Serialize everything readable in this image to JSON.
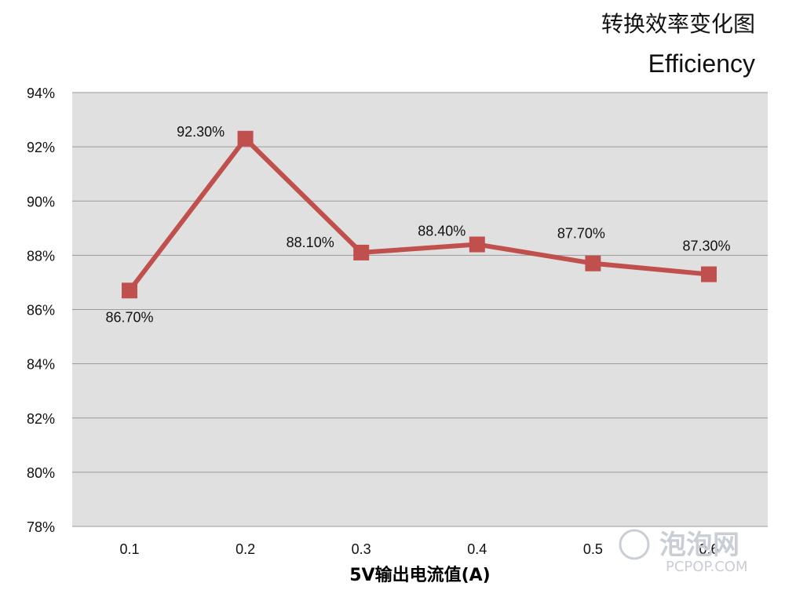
{
  "chart_data": {
    "type": "line",
    "title": "转换效率变化图",
    "subtitle": "Efficiency",
    "xlabel": "5V输出电流值(A)",
    "ylabel": "",
    "categories": [
      "0.1",
      "0.2",
      "0.3",
      "0.4",
      "0.5",
      "0.6"
    ],
    "series": [
      {
        "values": [
          86.7,
          92.3,
          88.1,
          88.4,
          87.7,
          87.3
        ],
        "data_labels": [
          "86.70%",
          "92.30%",
          "88.10%",
          "88.40%",
          "87.70%",
          "87.30%"
        ],
        "color": "#c0504d"
      }
    ],
    "ylim": [
      78,
      94
    ],
    "ytick_values": [
      78,
      80,
      82,
      84,
      86,
      88,
      90,
      92,
      94
    ],
    "ytick_labels": [
      "78%",
      "80%",
      "82%",
      "84%",
      "86%",
      "88%",
      "90%",
      "92%",
      "94%"
    ],
    "grid": true,
    "plot_background": "#e0e0e0",
    "gridline_color": "#9a9a9a"
  },
  "watermark": {
    "brand": "泡泡网",
    "site": "PCPOP.COM"
  }
}
